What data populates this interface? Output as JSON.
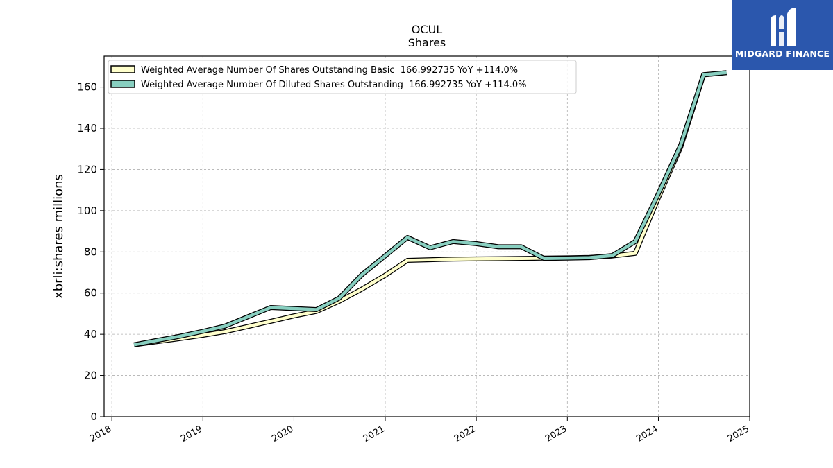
{
  "brand": {
    "name": "MIDGARD FINANCE",
    "logo_icon": "midgard-logo-icon",
    "background_color": "#2b57ad"
  },
  "chart_data": {
    "type": "line",
    "title": "OCUL",
    "subtitle": "Shares",
    "xlabel": "",
    "ylabel": "xbrli:shares millions",
    "xlim": [
      "2017-12-01",
      "2025-01-01"
    ],
    "ylim": [
      0,
      175
    ],
    "yticks": [
      0,
      20,
      40,
      60,
      80,
      100,
      120,
      140,
      160
    ],
    "xticks": [
      "2018",
      "2019",
      "2020",
      "2021",
      "2022",
      "2023",
      "2024",
      "2025"
    ],
    "grid": true,
    "legend_position": "top-left",
    "series": [
      {
        "name": "Weighted Average Number Of Shares Outstanding Basic  166.992735 YoY +114.0%",
        "color": "#ffffcc",
        "points": [
          [
            "2018-03-31",
            34.9
          ],
          [
            "2018-06-30",
            36.4
          ],
          [
            "2018-09-30",
            37.9
          ],
          [
            "2018-12-31",
            39.5
          ],
          [
            "2019-03-31",
            41.3
          ],
          [
            "2019-06-30",
            43.8
          ],
          [
            "2019-09-30",
            46.3
          ],
          [
            "2019-12-31",
            48.9
          ],
          [
            "2020-03-31",
            51.1
          ],
          [
            "2020-06-30",
            56.0
          ],
          [
            "2020-09-30",
            62.0
          ],
          [
            "2020-12-31",
            68.6
          ],
          [
            "2021-03-31",
            75.9
          ],
          [
            "2021-06-30",
            76.2
          ],
          [
            "2021-09-30",
            76.5
          ],
          [
            "2021-12-31",
            76.6
          ],
          [
            "2022-03-31",
            76.7
          ],
          [
            "2022-06-30",
            76.8
          ],
          [
            "2022-09-30",
            77.0
          ],
          [
            "2022-12-31",
            77.1
          ],
          [
            "2023-03-31",
            77.3
          ],
          [
            "2023-06-30",
            78.0
          ],
          [
            "2023-09-30",
            79.3
          ],
          [
            "2023-12-31",
            106.0
          ],
          [
            "2024-03-31",
            131.0
          ],
          [
            "2024-06-30",
            165.9
          ],
          [
            "2024-09-30",
            166.99
          ]
        ]
      },
      {
        "name": "Weighted Average Number Of Diluted Shares Outstanding  166.992735 YoY +114.0%",
        "color": "#88cfc0",
        "points": [
          [
            "2018-03-31",
            34.9
          ],
          [
            "2018-06-30",
            37.0
          ],
          [
            "2018-09-30",
            39.0
          ],
          [
            "2018-12-31",
            41.4
          ],
          [
            "2019-03-31",
            44.0
          ],
          [
            "2019-06-30",
            48.5
          ],
          [
            "2019-09-30",
            53.0
          ],
          [
            "2019-12-31",
            52.5
          ],
          [
            "2020-03-31",
            52.0
          ],
          [
            "2020-06-30",
            57.5
          ],
          [
            "2020-09-30",
            69.0
          ],
          [
            "2020-12-31",
            78.0
          ],
          [
            "2021-03-31",
            87.0
          ],
          [
            "2021-06-30",
            82.0
          ],
          [
            "2021-09-30",
            85.0
          ],
          [
            "2021-12-31",
            84.0
          ],
          [
            "2022-03-31",
            82.5
          ],
          [
            "2022-06-30",
            82.5
          ],
          [
            "2022-09-30",
            76.8
          ],
          [
            "2022-12-31",
            77.0
          ],
          [
            "2023-03-31",
            77.2
          ],
          [
            "2023-06-30",
            78.2
          ],
          [
            "2023-09-30",
            85.0
          ],
          [
            "2023-12-31",
            108.0
          ],
          [
            "2024-03-31",
            132.0
          ],
          [
            "2024-06-30",
            166.0
          ],
          [
            "2024-09-30",
            166.99
          ]
        ]
      }
    ]
  }
}
